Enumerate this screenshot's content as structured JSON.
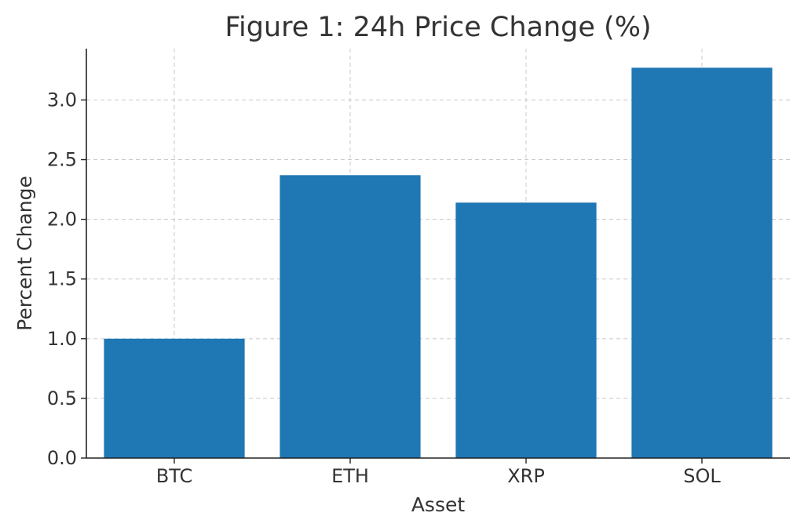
{
  "chart_data": {
    "type": "bar",
    "title": "Figure 1: 24h Price Change (%)",
    "xlabel": "Asset",
    "ylabel": "Percent Change",
    "categories": [
      "BTC",
      "ETH",
      "XRP",
      "SOL"
    ],
    "values": [
      1.0,
      2.37,
      2.14,
      3.27
    ],
    "ylim": [
      0,
      3.43
    ],
    "yticks": [
      0.0,
      0.5,
      1.0,
      1.5,
      2.0,
      2.5,
      3.0
    ],
    "ytick_labels": [
      "0.0",
      "0.5",
      "1.0",
      "1.5",
      "2.0",
      "2.5",
      "3.0"
    ],
    "grid": true,
    "bar_color": "#1f77b4"
  }
}
